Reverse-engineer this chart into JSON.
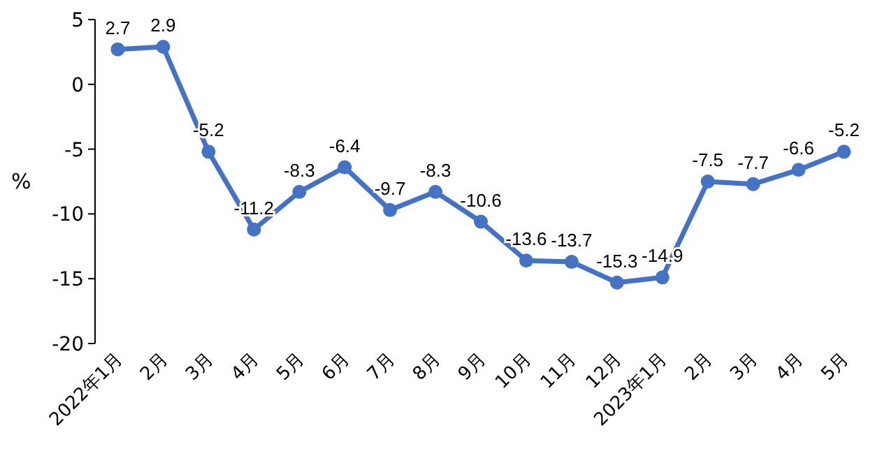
{
  "chart_data": {
    "type": "line",
    "ylabel": "%",
    "categories": [
      "2022年1月",
      "2月",
      "3月",
      "4月",
      "5月",
      "6月",
      "7月",
      "8月",
      "9月",
      "10月",
      "11月",
      "12月",
      "2023年1月",
      "2月",
      "3月",
      "4月",
      "5月"
    ],
    "series": [
      {
        "color": "#4472c4",
        "values": [
          2.7,
          2.9,
          -5.2,
          -11.2,
          -8.3,
          -6.4,
          -9.7,
          -8.3,
          -10.6,
          -13.6,
          -13.7,
          -15.3,
          -14.9,
          -7.5,
          -7.7,
          -6.6,
          -5.2
        ]
      }
    ],
    "ylim": [
      -20,
      5
    ],
    "yticks": [
      -20,
      -15,
      -10,
      -5,
      0,
      5
    ],
    "marker": "circle",
    "line_style": "solid",
    "data_labels": true,
    "grid": false
  }
}
